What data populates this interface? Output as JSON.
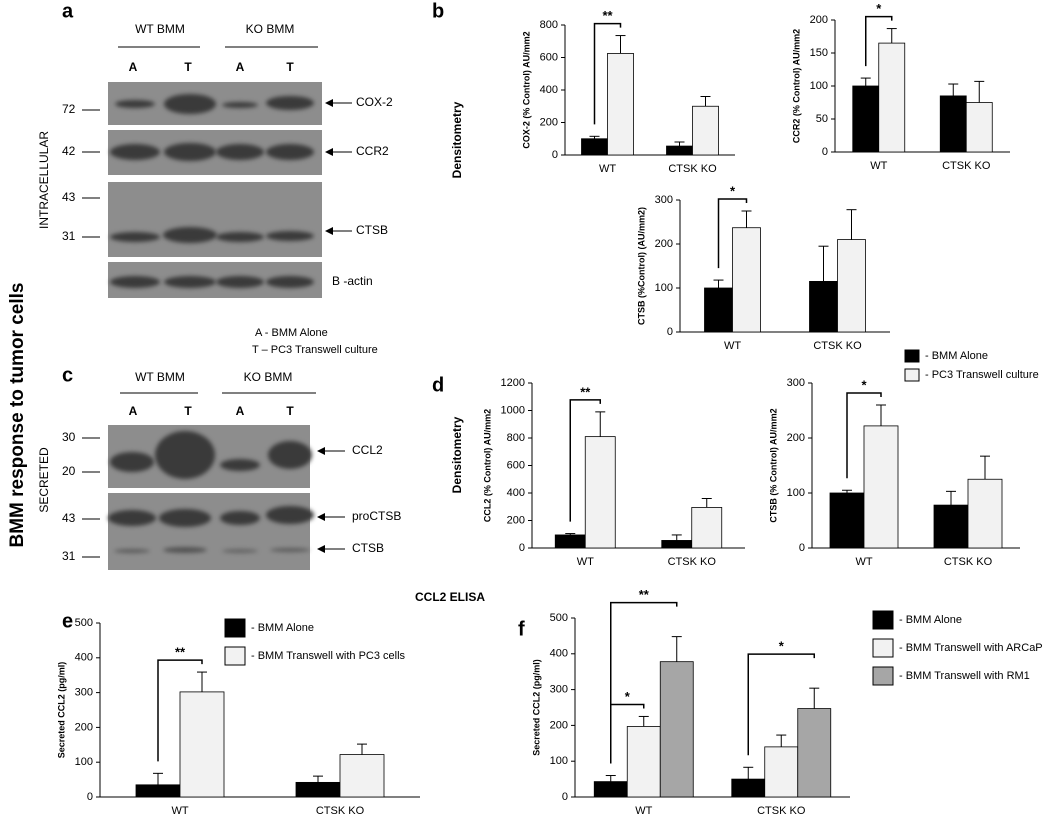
{
  "figure_title": "BMM response to tumor cells",
  "panel_labels": [
    "a",
    "b",
    "c",
    "d",
    "e",
    "f"
  ],
  "blot_a": {
    "groups": [
      "WT BMM",
      "KO BMM"
    ],
    "lanes": [
      "A",
      "T",
      "A",
      "T"
    ],
    "section": "INTRACELLULAR",
    "markers": [
      "72",
      "42",
      "43",
      "31"
    ],
    "bands": [
      "COX-2",
      "CCR2",
      "CTSB",
      "B -actin"
    ]
  },
  "lane_key": [
    "A - BMM Alone",
    "T – PC3 Transwell culture"
  ],
  "blot_c": {
    "groups": [
      "WT BMM",
      "KO BMM"
    ],
    "lanes": [
      "A",
      "T",
      "A",
      "T"
    ],
    "section": "SECRETED",
    "markers": [
      "30",
      "20",
      "43",
      "31"
    ],
    "bands": [
      "CCL2",
      "proCTSB",
      "CTSB"
    ]
  },
  "densitometry_labels": [
    "Densitometry",
    "Densitometry"
  ],
  "legend_bd": [
    {
      "name": "- BMM Alone",
      "color": "#000000"
    },
    {
      "name": "- PC3 Transwell culture",
      "color": "#f2f2f2"
    }
  ],
  "elisa_title": "CCL2 ELISA",
  "chart_data": [
    {
      "type": "bar",
      "ylabel": "COX-2 (% Control) AU/mm2",
      "categories": [
        "WT",
        "CTSK KO"
      ],
      "ylim": [
        0,
        800
      ],
      "yticks": [
        0,
        200,
        400,
        600,
        800
      ],
      "series": [
        {
          "color": "#000000",
          "values": [
            100,
            55
          ],
          "errors": [
            15,
            25
          ]
        },
        {
          "color": "#f2f2f2",
          "values": [
            625,
            300
          ],
          "errors": [
            110,
            60
          ]
        }
      ],
      "significance": [
        {
          "label": "**",
          "category": 0,
          "series": [
            0,
            1
          ]
        }
      ]
    },
    {
      "type": "bar",
      "ylabel": "CCR2 (% Control) AU/mm2",
      "categories": [
        "WT",
        "CTSK KO"
      ],
      "ylim": [
        0,
        200
      ],
      "yticks": [
        0,
        50,
        100,
        150,
        200
      ],
      "series": [
        {
          "color": "#000000",
          "values": [
            100,
            85
          ],
          "errors": [
            12,
            18
          ]
        },
        {
          "color": "#f2f2f2",
          "values": [
            165,
            75
          ],
          "errors": [
            22,
            32
          ]
        }
      ],
      "significance": [
        {
          "label": "*",
          "category": 0,
          "series": [
            0,
            1
          ]
        }
      ]
    },
    {
      "type": "bar",
      "ylabel": "CTSB (%Control) (AU/mm2)",
      "categories": [
        "WT",
        "CTSK KO"
      ],
      "ylim": [
        0,
        300
      ],
      "yticks": [
        0,
        100,
        200,
        300
      ],
      "series": [
        {
          "color": "#000000",
          "values": [
            100,
            115
          ],
          "errors": [
            18,
            80
          ]
        },
        {
          "color": "#f2f2f2",
          "values": [
            237,
            210
          ],
          "errors": [
            38,
            68
          ]
        }
      ],
      "significance": [
        {
          "label": "*",
          "category": 0,
          "series": [
            0,
            1
          ]
        }
      ]
    },
    {
      "type": "bar",
      "ylabel": "CCL2 (% Control) AU/mm2",
      "categories": [
        "WT",
        "CTSK KO"
      ],
      "ylim": [
        0,
        1200
      ],
      "yticks": [
        0,
        200,
        400,
        600,
        800,
        1000,
        1200
      ],
      "series": [
        {
          "color": "#000000",
          "values": [
            95,
            55
          ],
          "errors": [
            10,
            40
          ]
        },
        {
          "color": "#f2f2f2",
          "values": [
            810,
            295
          ],
          "errors": [
            180,
            65
          ]
        }
      ],
      "significance": [
        {
          "label": "**",
          "category": 0,
          "series": [
            0,
            1
          ]
        }
      ]
    },
    {
      "type": "bar",
      "ylabel": "CTSB (% Control) AU/mm2",
      "categories": [
        "WT",
        "CTSK KO"
      ],
      "ylim": [
        0,
        300
      ],
      "yticks": [
        0,
        100,
        200,
        300
      ],
      "series": [
        {
          "color": "#000000",
          "values": [
            100,
            78
          ],
          "errors": [
            5,
            25
          ]
        },
        {
          "color": "#f2f2f2",
          "values": [
            222,
            125
          ],
          "errors": [
            38,
            42
          ]
        }
      ],
      "significance": [
        {
          "label": "*",
          "category": 0,
          "series": [
            0,
            1
          ]
        }
      ]
    },
    {
      "type": "bar",
      "ylabel": "Secreted CCL2 (pg/ml)",
      "categories": [
        "WT",
        "CTSK KO"
      ],
      "ylim": [
        0,
        500
      ],
      "yticks": [
        0,
        100,
        200,
        300,
        400,
        500
      ],
      "series": [
        {
          "name": "- BMM Alone",
          "color": "#000000",
          "values": [
            35,
            42
          ],
          "errors": [
            33,
            18
          ]
        },
        {
          "name": "- BMM Transwell with PC3 cells",
          "color": "#f2f2f2",
          "values": [
            302,
            122
          ],
          "errors": [
            57,
            30
          ]
        }
      ],
      "significance": [
        {
          "label": "**",
          "category": 0,
          "series": [
            0,
            1
          ]
        }
      ]
    },
    {
      "type": "bar",
      "ylabel": "Secreted CCL2 (pg/ml)",
      "categories": [
        "WT",
        "CTSK KO"
      ],
      "ylim": [
        0,
        500
      ],
      "yticks": [
        0,
        100,
        200,
        300,
        400,
        500
      ],
      "series": [
        {
          "name": "- BMM Alone",
          "color": "#000000",
          "values": [
            43,
            50
          ],
          "errors": [
            17,
            33
          ]
        },
        {
          "name": "- BMM Transwell with ARCaP",
          "color": "#f2f2f2",
          "values": [
            197,
            140
          ],
          "errors": [
            28,
            33
          ]
        },
        {
          "name": "- BMM Transwell with RM1",
          "color": "#a6a6a6",
          "values": [
            378,
            247
          ],
          "errors": [
            70,
            57
          ]
        }
      ],
      "significance": [
        {
          "label": "*",
          "category": 0,
          "series": [
            0,
            1
          ]
        },
        {
          "label": "**",
          "category": 0,
          "series": [
            0,
            2
          ]
        },
        {
          "label": "*",
          "category": 1,
          "series": [
            0,
            2
          ]
        }
      ]
    }
  ]
}
